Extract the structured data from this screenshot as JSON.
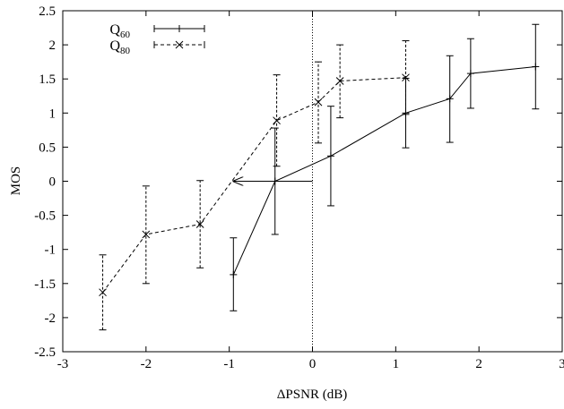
{
  "chart_data": {
    "type": "line",
    "xlabel": "ΔPSNR (dB)",
    "ylabel": "MOS",
    "xlim": [
      -3,
      3
    ],
    "ylim": [
      -2.5,
      2.5
    ],
    "x_ticks": [
      -3,
      -2,
      -1,
      0,
      1,
      2,
      3
    ],
    "y_ticks": [
      -2.5,
      -2,
      -1.5,
      -1,
      -0.5,
      0,
      0.5,
      1,
      1.5,
      2,
      2.5
    ],
    "x_tick_labels": [
      "-3",
      "-2",
      "-1",
      "0",
      "1",
      "2",
      "3"
    ],
    "y_tick_labels": [
      "-2.5",
      "-2",
      "-1.5",
      "-1",
      "-0.5",
      "0",
      "0.5",
      "1",
      "1.5",
      "2",
      "2.5"
    ],
    "legend_placement": "top-left",
    "grid": false,
    "series": [
      {
        "name": "Q60",
        "name_main": "Q",
        "name_sub": "60",
        "line_style": "solid",
        "marker": "+",
        "color": "#000000",
        "points": [
          {
            "x": -0.95,
            "y": -1.37,
            "lo": -1.9,
            "hi": -0.83
          },
          {
            "x": -0.45,
            "y": 0.0,
            "lo": -0.78,
            "hi": 0.78
          },
          {
            "x": 0.22,
            "y": 0.37,
            "lo": -0.36,
            "hi": 1.1
          },
          {
            "x": 1.12,
            "y": 1.0,
            "lo": 0.49,
            "hi": 1.51
          },
          {
            "x": 1.65,
            "y": 1.21,
            "lo": 0.57,
            "hi": 1.84
          },
          {
            "x": 1.9,
            "y": 1.58,
            "lo": 1.07,
            "hi": 2.09
          },
          {
            "x": 2.68,
            "y": 1.68,
            "lo": 1.06,
            "hi": 2.3
          }
        ]
      },
      {
        "name": "Q80",
        "name_main": "Q",
        "name_sub": "80",
        "line_style": "dashed",
        "marker": "x",
        "color": "#000000",
        "points": [
          {
            "x": -2.52,
            "y": -1.63,
            "lo": -2.18,
            "hi": -1.08
          },
          {
            "x": -2.0,
            "y": -0.78,
            "lo": -1.5,
            "hi": -0.07
          },
          {
            "x": -1.35,
            "y": -0.63,
            "lo": -1.27,
            "hi": 0.01
          },
          {
            "x": -0.43,
            "y": 0.89,
            "lo": 0.22,
            "hi": 1.56
          },
          {
            "x": 0.07,
            "y": 1.16,
            "lo": 0.56,
            "hi": 1.75
          },
          {
            "x": 0.33,
            "y": 1.47,
            "lo": 0.93,
            "hi": 2.0
          },
          {
            "x": 1.12,
            "y": 1.52,
            "lo": 0.98,
            "hi": 2.06
          }
        ]
      }
    ],
    "annotations": [
      {
        "type": "vline",
        "x": 0,
        "style": "dotted"
      },
      {
        "type": "arrow",
        "from": [
          0,
          0
        ],
        "to": [
          -0.95,
          0
        ]
      }
    ]
  }
}
